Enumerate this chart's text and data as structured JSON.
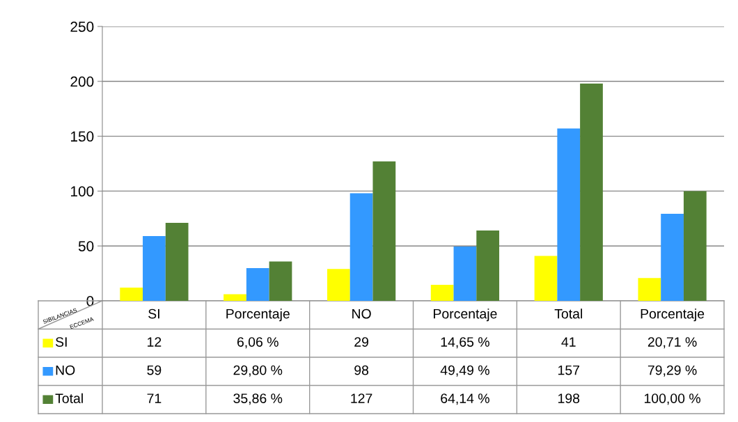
{
  "chart_data": {
    "type": "bar",
    "categories": [
      "SI",
      "Porcentaje",
      "NO",
      "Porcentaje",
      "Total",
      "Porcentaje"
    ],
    "series": [
      {
        "name": "SI",
        "color": "#ffff00",
        "values": [
          12,
          6.06,
          29,
          14.65,
          41,
          20.71
        ],
        "value_labels": [
          "12",
          "6,06 %",
          "29",
          "14,65 %",
          "41",
          "20,71 %"
        ]
      },
      {
        "name": "NO",
        "color": "#3399ff",
        "values": [
          59,
          29.8,
          98,
          49.49,
          157,
          79.29
        ],
        "value_labels": [
          "59",
          "29,80 %",
          "98",
          "49,49 %",
          "157",
          "79,29 %"
        ]
      },
      {
        "name": "Total",
        "color": "#538135",
        "values": [
          71,
          35.86,
          127,
          64.14,
          198,
          100.0
        ],
        "value_labels": [
          "71",
          "35,86 %",
          "127",
          "64,14 %",
          "198",
          "100,00 %"
        ]
      }
    ],
    "annotations": [
      "SIBILANCIAS",
      "ECCEMA"
    ],
    "ylim": [
      0,
      250
    ],
    "yticks": [
      0,
      50,
      100,
      150,
      200,
      250
    ],
    "grid": "y",
    "legend": "bottom"
  }
}
